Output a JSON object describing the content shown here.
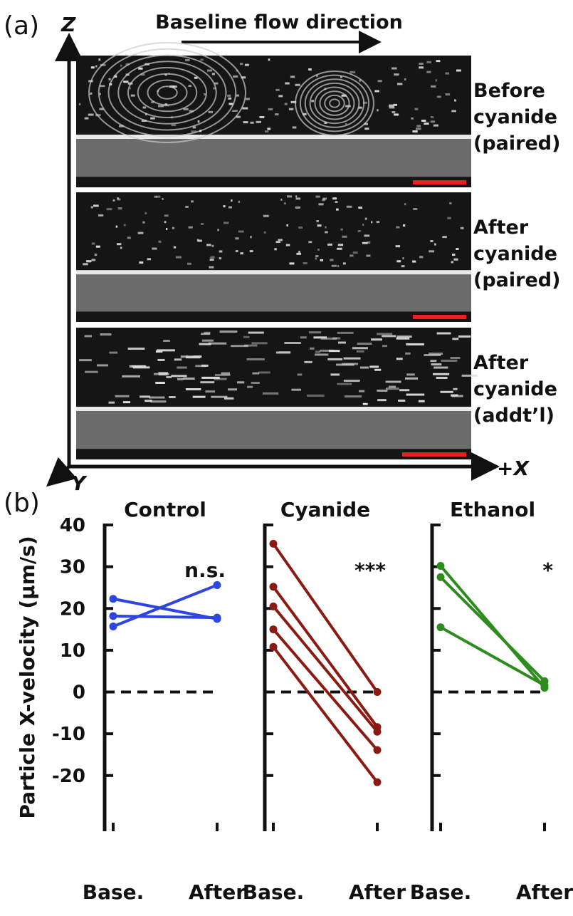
{
  "panel_a": {
    "label": "(a)",
    "axis_z": "Z",
    "axis_y": "Y",
    "axis_x": "+X",
    "flow_label": "Baseline flow direction",
    "images": [
      {
        "label": [
          "Before",
          "cyanide",
          "(paired)"
        ]
      },
      {
        "label": [
          "After",
          "cyanide",
          "(paired)"
        ]
      },
      {
        "label": [
          "After",
          "cyanide",
          "(addt’l)"
        ]
      }
    ]
  },
  "panel_b_label": "(b)",
  "chart_data": [
    {
      "type": "line",
      "title": "Control",
      "ylabel": "Particle X-velocity (μm/s)",
      "show_ytick_labels": true,
      "annotation": "n.s.",
      "categories": [
        "Base.",
        "After"
      ],
      "color": "#2f45e0",
      "ylim": [
        -33,
        40
      ],
      "yticks": [
        -20,
        -10,
        0,
        10,
        20,
        30,
        40
      ],
      "hline": 0,
      "series": [
        {
          "values": [
            22.3,
            17.5
          ]
        },
        {
          "values": [
            18.2,
            17.8
          ]
        },
        {
          "values": [
            15.7,
            25.6
          ]
        }
      ]
    },
    {
      "type": "line",
      "title": "Cyanide",
      "annotation": "***",
      "categories": [
        "Base.",
        "After"
      ],
      "color": "#8b1a12",
      "ylim": [
        -33,
        40
      ],
      "yticks": [
        -20,
        -10,
        0,
        10,
        20,
        30,
        40
      ],
      "hline": 0,
      "series": [
        {
          "values": [
            35.5,
            0
          ]
        },
        {
          "values": [
            25.2,
            -8.4
          ]
        },
        {
          "values": [
            20.5,
            -9.5
          ]
        },
        {
          "values": [
            15.0,
            -13.9
          ]
        },
        {
          "values": [
            10.8,
            -21.6
          ]
        }
      ]
    },
    {
      "type": "line",
      "title": "Ethanol",
      "annotation": "*",
      "categories": [
        "Base.",
        "After"
      ],
      "color": "#2e8b1e",
      "ylim": [
        -33,
        40
      ],
      "yticks": [
        -20,
        -10,
        0,
        10,
        20,
        30,
        40
      ],
      "hline": 0,
      "series": [
        {
          "values": [
            30.2,
            1.0
          ]
        },
        {
          "values": [
            27.5,
            2.6
          ]
        },
        {
          "values": [
            15.5,
            1.6
          ]
        }
      ]
    }
  ]
}
